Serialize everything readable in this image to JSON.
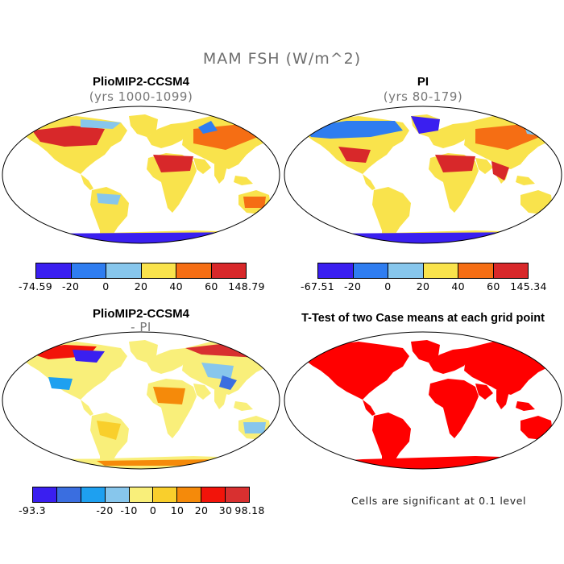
{
  "main_title": "MAM FSH (W/m^2)",
  "panels": {
    "top_left": {
      "title": "PlioMIP2-CCSM4",
      "subtitle": "(yrs 1000-1099)",
      "colorbar": {
        "colors": [
          "#3a1ff0",
          "#2f7df0",
          "#87c6ec",
          "#f9e34c",
          "#f56e14",
          "#d8282a"
        ],
        "ticks": [
          "-74.59",
          "-20",
          "0",
          "20",
          "40",
          "60",
          "148.79"
        ]
      }
    },
    "top_right": {
      "title": "PI",
      "subtitle": "(yrs 80-179)",
      "colorbar": {
        "colors": [
          "#3a1ff0",
          "#2f7df0",
          "#87c6ec",
          "#f9e34c",
          "#f56e14",
          "#d8282a"
        ],
        "ticks": [
          "-67.51",
          "-20",
          "0",
          "20",
          "40",
          "60",
          "145.34"
        ]
      }
    },
    "bottom_left": {
      "title": "PlioMIP2-CCSM4",
      "subtitle": "- PI",
      "colorbar": {
        "colors": [
          "#3a1ff0",
          "#3a6ee0",
          "#1ea0f0",
          "#87c6ec",
          "#f9ef7a",
          "#f9cf2c",
          "#f58a0a",
          "#f2140a",
          "#d83030"
        ],
        "ticks": [
          "-93.3",
          "-20",
          "-10",
          "0",
          "10",
          "20",
          "30",
          "98.18"
        ]
      }
    },
    "bottom_right": {
      "title": "T-Test of two Case means at each grid point",
      "footnote": "Cells are significant at 0.1 level",
      "color": "#ff0000"
    }
  }
}
